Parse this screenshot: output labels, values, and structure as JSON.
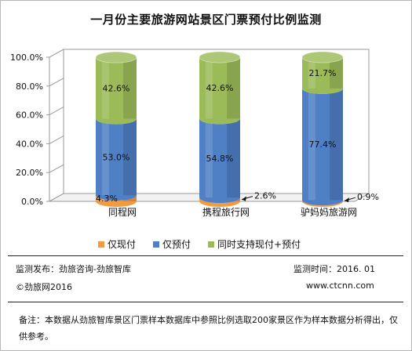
{
  "title": "一月份主要旅游网站景区门票预付比例监测",
  "chart_data": {
    "type": "bar",
    "stacked": true,
    "categories": [
      "同程网",
      "携程旅行网",
      "驴妈妈旅游网"
    ],
    "series": [
      {
        "name": "仅现付",
        "color": "#f39a41",
        "values": [
          4.3,
          2.6,
          0.9
        ]
      },
      {
        "name": "仅预付",
        "color": "#4f7fc4",
        "values": [
          53.0,
          54.8,
          77.4
        ]
      },
      {
        "name": "同时支持现付+预付",
        "color": "#9bbb59",
        "values": [
          42.6,
          42.6,
          21.7
        ]
      }
    ],
    "data_labels": [
      [
        "4.3%",
        "2.6%",
        "0.9%"
      ],
      [
        "53.0%",
        "54.8%",
        "77.4%"
      ],
      [
        "42.6%",
        "42.6%",
        "21.7%"
      ]
    ],
    "y_ticks": [
      "0.0%",
      "20.0%",
      "40.0%",
      "60.0%",
      "80.0%",
      "100.0%"
    ],
    "ylim": [
      0,
      100
    ],
    "grid": false,
    "legend_position": "bottom"
  },
  "footer": {
    "publisher": "监测发布：劲旅咨询-劲旅智库",
    "copyright": "©劲旅网2016",
    "monitor_time": "监测时间：2016. 01",
    "website": "www.ctcnn.com",
    "note": "备注：本数据从劲旅智库景区门票样本数据库中参照比例选取200家景区作为样本数据分析得出，仅供参考。"
  }
}
